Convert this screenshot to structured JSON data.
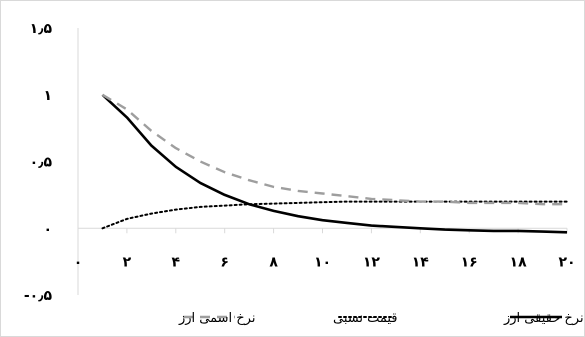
{
  "chart_data": {
    "type": "line",
    "title": "",
    "xlabel": "",
    "ylabel": "",
    "xlim": [
      0,
      20
    ],
    "ylim": [
      -0.5,
      1.5
    ],
    "grid": false,
    "legend_position": "bottom",
    "x_ticks": [
      {
        "value": 0,
        "label": "۰"
      },
      {
        "value": 2,
        "label": "۲"
      },
      {
        "value": 4,
        "label": "۴"
      },
      {
        "value": 6,
        "label": "۶"
      },
      {
        "value": 8,
        "label": "۸"
      },
      {
        "value": 10,
        "label": "۱۰"
      },
      {
        "value": 12,
        "label": "۱۲"
      },
      {
        "value": 14,
        "label": "۱۴"
      },
      {
        "value": 16,
        "label": "۱۶"
      },
      {
        "value": 18,
        "label": "۱۸"
      },
      {
        "value": 20,
        "label": "۲۰"
      }
    ],
    "y_ticks": [
      {
        "value": 1.5,
        "label": "۱٫۵"
      },
      {
        "value": 1,
        "label": "۱"
      },
      {
        "value": 0.5,
        "label": "۰٫۵"
      },
      {
        "value": 0,
        "label": "۰"
      },
      {
        "value": -0.5,
        "label": "-۰٫۵"
      }
    ],
    "x": [
      1,
      2,
      3,
      4,
      5,
      6,
      7,
      8,
      9,
      10,
      11,
      12,
      13,
      14,
      15,
      16,
      17,
      18,
      19,
      20
    ],
    "series": [
      {
        "name": "نرخ حقیقی ارز",
        "style": "solid",
        "color": "#000000",
        "values": [
          1.0,
          0.83,
          0.62,
          0.46,
          0.34,
          0.25,
          0.18,
          0.13,
          0.09,
          0.06,
          0.04,
          0.02,
          0.01,
          0.0,
          -0.01,
          -0.015,
          -0.02,
          -0.02,
          -0.025,
          -0.03
        ]
      },
      {
        "name": "قیمت نسبی",
        "style": "dotted",
        "color": "#000000",
        "values": [
          0.0,
          0.07,
          0.11,
          0.14,
          0.16,
          0.17,
          0.18,
          0.185,
          0.19,
          0.195,
          0.2,
          0.2,
          0.2,
          0.2,
          0.2,
          0.2,
          0.2,
          0.2,
          0.2,
          0.2
        ]
      },
      {
        "name": "نرخ اسمی ارز",
        "style": "dashed",
        "color": "#9e9e9e",
        "values": [
          1.0,
          0.89,
          0.73,
          0.6,
          0.5,
          0.42,
          0.36,
          0.31,
          0.28,
          0.26,
          0.24,
          0.22,
          0.21,
          0.2,
          0.2,
          0.19,
          0.19,
          0.19,
          0.18,
          0.18
        ]
      }
    ]
  }
}
